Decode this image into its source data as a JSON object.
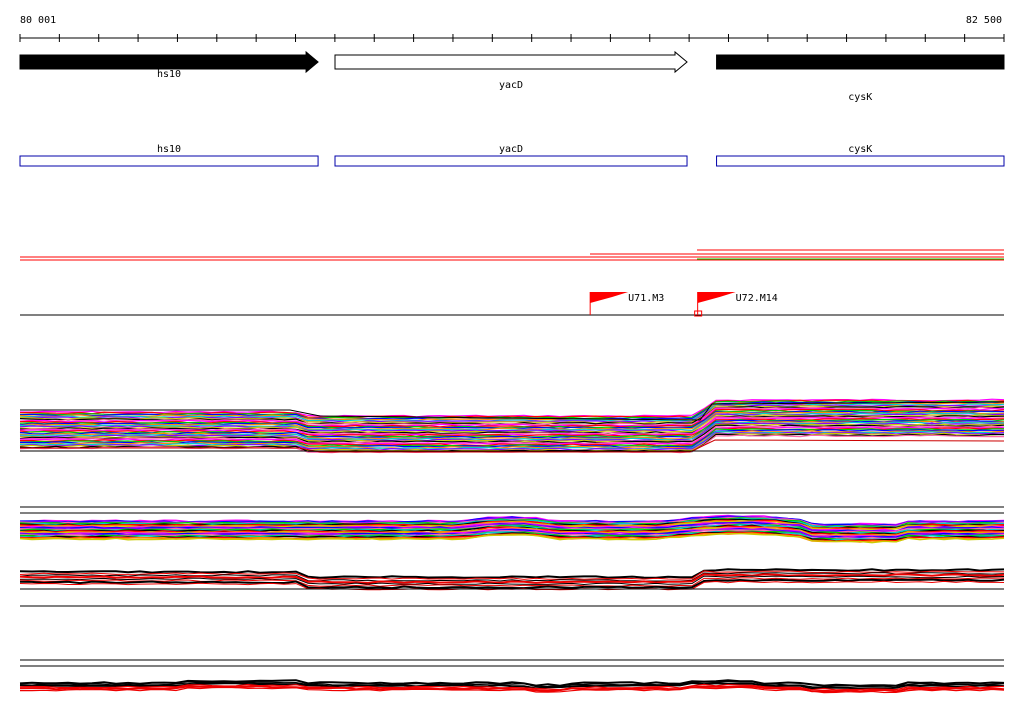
{
  "ruler": {
    "start_label": "80 001",
    "end_label": "82 500",
    "start": 80001,
    "end": 82500
  },
  "genes": [
    {
      "name": "hs10",
      "start": 80001,
      "end": 80758,
      "style": "filled"
    },
    {
      "name": "yacD",
      "start": 80801,
      "end": 81695,
      "style": "outline"
    },
    {
      "name": "cysK",
      "start": 81770,
      "end": 82500,
      "style": "filled"
    }
  ],
  "features": [
    {
      "name": "hs10",
      "start": 80001,
      "end": 80758
    },
    {
      "name": "yacD",
      "start": 80801,
      "end": 81695
    },
    {
      "name": "cysK",
      "start": 81770,
      "end": 82500
    }
  ],
  "markers": [
    {
      "name": "U71.M3",
      "pos": 81449
    },
    {
      "name": "U72.M14",
      "pos": 81722
    }
  ],
  "colors": {
    "gene_fill": "#000000",
    "feature_outline": "#0000aa",
    "marker": "#ff0000",
    "axis": "#000000",
    "lines": [
      "#ff00ff",
      "#ff0000",
      "#00cc00",
      "#0000ff",
      "#ff8800",
      "#00cccc",
      "#8800ff",
      "#cccc00",
      "#000000",
      "#ff66aa"
    ]
  }
}
